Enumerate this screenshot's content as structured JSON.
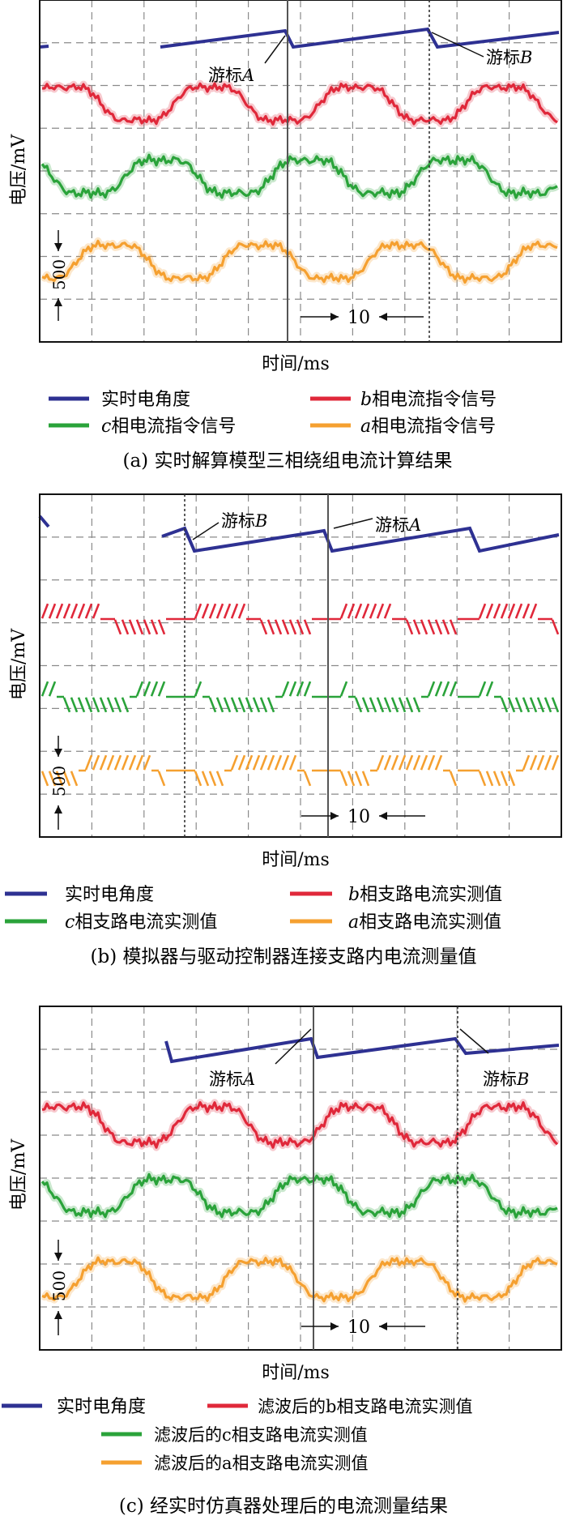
{
  "colors": {
    "angle": "#2e3192",
    "phase_b": "#e0283a",
    "phase_c": "#2aa33a",
    "phase_a": "#f5a030",
    "grid": "#8a8a8a",
    "frame": "#111111",
    "cursor": "#555555"
  },
  "chart_data": [
    {
      "type": "line",
      "caption": "(a) 实时解算模型三相绕组电流计算结果",
      "ylabel": "电压/mV",
      "xlabel": "时间/ms",
      "scale_time": "10",
      "scale_voltage": "500",
      "cursors": [
        {
          "label": "游标",
          "var": "A"
        },
        {
          "label": "游标",
          "var": "B"
        }
      ],
      "legend": [
        {
          "text": "实时电角度",
          "var": "",
          "color": "#2e3192"
        },
        {
          "text": "相电流指令信号",
          "var": "b",
          "color": "#e0283a"
        },
        {
          "text": "相电流指令信号",
          "var": "c",
          "color": "#2aa33a"
        },
        {
          "text": "相电流指令信号",
          "var": "a",
          "color": "#f5a030"
        }
      ]
    },
    {
      "type": "line",
      "caption": "(b) 模拟器与驱动控制器连接支路内电流测量值",
      "ylabel": "电压/mV",
      "xlabel": "时间/ms",
      "scale_time": "10",
      "scale_voltage": "500",
      "cursors": [
        {
          "label": "游标",
          "var": "B"
        },
        {
          "label": "游标",
          "var": "A"
        }
      ],
      "legend": [
        {
          "text": "实时电角度",
          "var": "",
          "color": "#2e3192"
        },
        {
          "text": "相支路电流实测值",
          "var": "b",
          "color": "#e0283a"
        },
        {
          "text": "相支路电流实测值",
          "var": "c",
          "color": "#2aa33a"
        },
        {
          "text": "相支路电流实测值",
          "var": "a",
          "color": "#f5a030"
        }
      ]
    },
    {
      "type": "line",
      "caption": "(c) 经实时仿真器处理后的电流测量结果",
      "ylabel": "电压/mV",
      "xlabel": "时间/ms",
      "scale_time": "10",
      "scale_voltage": "500",
      "cursors": [
        {
          "label": "游标",
          "var": "A"
        },
        {
          "label": "游标",
          "var": "B"
        }
      ],
      "legend": [
        {
          "text": "实时电角度",
          "var": "",
          "color": "#2e3192"
        },
        {
          "text": "滤波后的b相支路电流实测值",
          "var": "",
          "color": "#e0283a"
        },
        {
          "text": "滤波后的c相支路电流实测值",
          "var": "",
          "color": "#2aa33a"
        },
        {
          "text": "滤波后的a相支路电流实测值",
          "var": "",
          "color": "#f5a030"
        }
      ]
    }
  ]
}
